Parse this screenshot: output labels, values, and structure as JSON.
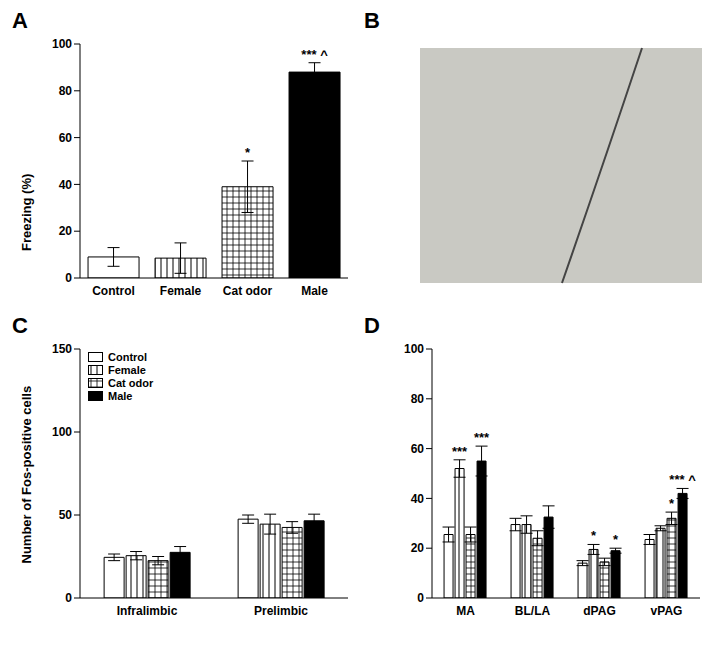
{
  "chart_data": [
    {
      "type": "bar",
      "title": "A",
      "y_label": "Freezing (%)",
      "categories": [
        "Control",
        "Female",
        "Cat odor",
        "Male"
      ],
      "values": [
        9,
        8.5,
        39,
        88
      ],
      "errors": [
        4,
        6.5,
        11,
        4
      ],
      "annotations": [
        null,
        null,
        "*",
        "*** ^"
      ],
      "colors": [
        "#ffffff",
        "#ffffff",
        "#ffffff",
        "#000000"
      ],
      "ylim": [
        0,
        100
      ],
      "yticks": [
        0,
        20,
        40,
        60,
        80,
        100
      ],
      "grid": false
    },
    {
      "type": "image",
      "title": "B"
    },
    {
      "type": "bar",
      "title": "C",
      "y_label": "Number of Fos-positive cells",
      "categories": [
        "Infralimbic",
        "Prelimbic"
      ],
      "series": [
        {
          "name": "Control",
          "color": "#ffffff",
          "values": [
            24.5,
            47.5
          ],
          "errors": [
            2,
            2.5
          ],
          "annotations": [
            null,
            null
          ]
        },
        {
          "name": "Female",
          "color": "#ffffff",
          "values": [
            25.5,
            44.5
          ],
          "errors": [
            2.5,
            6
          ],
          "annotations": [
            null,
            null
          ]
        },
        {
          "name": "Cat odor",
          "color": "#ffffff",
          "values": [
            22.5,
            42.5
          ],
          "errors": [
            2.5,
            3.5
          ],
          "annotations": [
            null,
            null
          ]
        },
        {
          "name": "Male",
          "color": "#000000",
          "values": [
            27.5,
            46.5
          ],
          "errors": [
            3.5,
            4
          ],
          "annotations": [
            null,
            null
          ]
        }
      ],
      "ylim": [
        0,
        150
      ],
      "yticks": [
        0,
        50,
        100,
        150
      ],
      "grid": false,
      "legend": "upper left"
    },
    {
      "type": "bar",
      "title": "D",
      "categories": [
        "MA",
        "BL/LA",
        "dPAG",
        "vPAG"
      ],
      "series": [
        {
          "name": "Control",
          "color": "#ffffff",
          "values": [
            25.5,
            29.5,
            14,
            23.5
          ],
          "errors": [
            3,
            2.5,
            1,
            2
          ],
          "annotations": [
            null,
            null,
            null,
            null
          ]
        },
        {
          "name": "Female",
          "color": "#ffffff",
          "values": [
            52,
            29.5,
            19.5,
            28
          ],
          "errors": [
            3.5,
            3.5,
            2,
            1
          ],
          "annotations": [
            "***",
            null,
            "*",
            null
          ]
        },
        {
          "name": "Cat odor",
          "color": "#ffffff",
          "values": [
            25.5,
            24,
            14.5,
            32
          ],
          "errors": [
            3,
            3,
            1.5,
            2.5
          ],
          "annotations": [
            null,
            null,
            null,
            "*"
          ]
        },
        {
          "name": "Male",
          "color": "#000000",
          "values": [
            55,
            32.5,
            19,
            42
          ],
          "errors": [
            6,
            4.5,
            1,
            2
          ],
          "annotations": [
            "***",
            null,
            "*",
            "*** ^"
          ]
        }
      ],
      "ylim": [
        0,
        100
      ],
      "yticks": [
        0,
        20,
        40,
        60,
        80,
        100
      ],
      "grid": false
    }
  ]
}
